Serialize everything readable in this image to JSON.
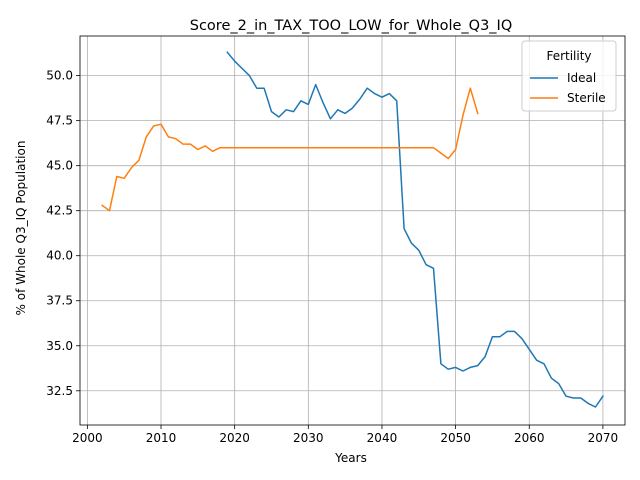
{
  "chart_data": {
    "type": "line",
    "title": "Score_2_in_TAX_TOO_LOW_for_Whole_Q3_IQ",
    "xlabel": "Years",
    "ylabel": "% of Whole Q3_IQ Population",
    "xlim": [
      1999,
      2073
    ],
    "ylim": [
      30.6,
      52.2
    ],
    "xticks": [
      2000,
      2010,
      2020,
      2030,
      2040,
      2050,
      2060,
      2070
    ],
    "yticks": [
      32.5,
      35.0,
      37.5,
      40.0,
      42.5,
      45.0,
      47.5,
      50.0
    ],
    "ytick_labels": [
      "32.5",
      "35.0",
      "37.5",
      "40.0",
      "42.5",
      "45.0",
      "47.5",
      "50.0"
    ],
    "grid": true,
    "legend": {
      "title": "Fertility",
      "placement": "top-right"
    },
    "series": [
      {
        "name": "Ideal",
        "color": "#1f77b4",
        "x": [
          2019,
          2020,
          2021,
          2022,
          2023,
          2024,
          2025,
          2026,
          2027,
          2028,
          2029,
          2030,
          2031,
          2032,
          2033,
          2034,
          2035,
          2036,
          2037,
          2038,
          2039,
          2040,
          2041,
          2042,
          2043,
          2044,
          2045,
          2046,
          2047,
          2048,
          2049,
          2050,
          2051,
          2052,
          2053,
          2054,
          2055,
          2056,
          2057,
          2058,
          2059,
          2060,
          2061,
          2062,
          2063,
          2064,
          2065,
          2066,
          2067,
          2068,
          2069,
          2070
        ],
        "values": [
          51.3,
          50.8,
          50.4,
          50.0,
          49.3,
          49.3,
          48.0,
          47.7,
          48.1,
          48.0,
          48.6,
          48.4,
          49.5,
          48.5,
          47.6,
          48.1,
          47.9,
          48.2,
          48.7,
          49.3,
          49.0,
          48.8,
          49.0,
          48.6,
          41.5,
          40.7,
          40.3,
          39.5,
          39.3,
          34.0,
          33.7,
          33.8,
          33.6,
          33.8,
          33.9,
          34.4,
          35.5,
          35.5,
          35.8,
          35.8,
          35.4,
          34.8,
          34.2,
          34.0,
          33.2,
          32.9,
          32.2,
          32.1,
          32.1,
          31.8,
          31.6,
          32.2
        ]
      },
      {
        "name": "Sterile",
        "color": "#ff7f0e",
        "x": [
          2002,
          2003,
          2004,
          2005,
          2006,
          2007,
          2008,
          2009,
          2010,
          2011,
          2012,
          2013,
          2014,
          2015,
          2016,
          2017,
          2018,
          2019,
          2020,
          2021,
          2022,
          2023,
          2024,
          2025,
          2026,
          2027,
          2028,
          2029,
          2030,
          2031,
          2032,
          2033,
          2034,
          2035,
          2036,
          2037,
          2038,
          2039,
          2040,
          2041,
          2042,
          2043,
          2044,
          2045,
          2046,
          2047,
          2048,
          2049,
          2050,
          2051,
          2052,
          2053
        ],
        "values": [
          42.8,
          42.5,
          44.4,
          44.3,
          44.9,
          45.3,
          46.6,
          47.2,
          47.3,
          46.6,
          46.5,
          46.2,
          46.2,
          45.9,
          46.1,
          45.8,
          46.0,
          46.0,
          46.0,
          46.0,
          46.0,
          46.0,
          46.0,
          46.0,
          46.0,
          46.0,
          46.0,
          46.0,
          46.0,
          46.0,
          46.0,
          46.0,
          46.0,
          46.0,
          46.0,
          46.0,
          46.0,
          46.0,
          46.0,
          46.0,
          46.0,
          46.0,
          46.0,
          46.0,
          46.0,
          46.0,
          45.7,
          45.4,
          45.9,
          47.8,
          49.3,
          47.9
        ]
      }
    ]
  }
}
